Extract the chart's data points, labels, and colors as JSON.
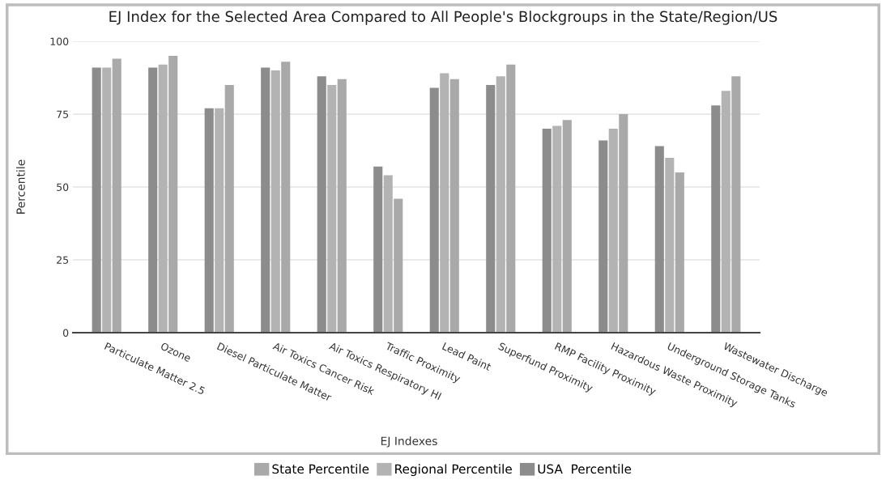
{
  "chart_data": {
    "type": "bar",
    "title": "EJ Index for the Selected Area Compared to All People's Blockgroups in the State/Region/US",
    "xlabel": "EJ Indexes",
    "ylabel": "Percentile",
    "categories": [
      "Particulate Matter 2.5",
      "Ozone",
      "Diesel Particulate Matter",
      "Air Toxics Cancer Risk",
      "Air Toxics Respiratory HI",
      "Traffic Proximity",
      "Lead Paint",
      "Superfund Proximity",
      "RMP Facility Proximity",
      "Hazardous Waste Proximity",
      "Underground Storage Tanks",
      "Wastewater Discharge"
    ],
    "series": [
      {
        "name": "USA  Percentile",
        "color": "#8c8c8c",
        "values": [
          91,
          91,
          77,
          91,
          88,
          57,
          84,
          85,
          70,
          66,
          64,
          78
        ]
      },
      {
        "name": "Regional Percentile",
        "color": "#b3b3b3",
        "values": [
          91,
          92,
          77,
          90,
          85,
          54,
          89,
          88,
          71,
          70,
          60,
          83
        ]
      },
      {
        "name": "State Percentile",
        "color": "#a9a9a9",
        "values": [
          94,
          95,
          85,
          93,
          87,
          46,
          87,
          92,
          73,
          75,
          55,
          88
        ]
      }
    ],
    "ylim": [
      0,
      100
    ],
    "yticks": [
      0,
      25,
      50,
      75,
      100
    ],
    "grid": "y",
    "legend": "bottom"
  }
}
